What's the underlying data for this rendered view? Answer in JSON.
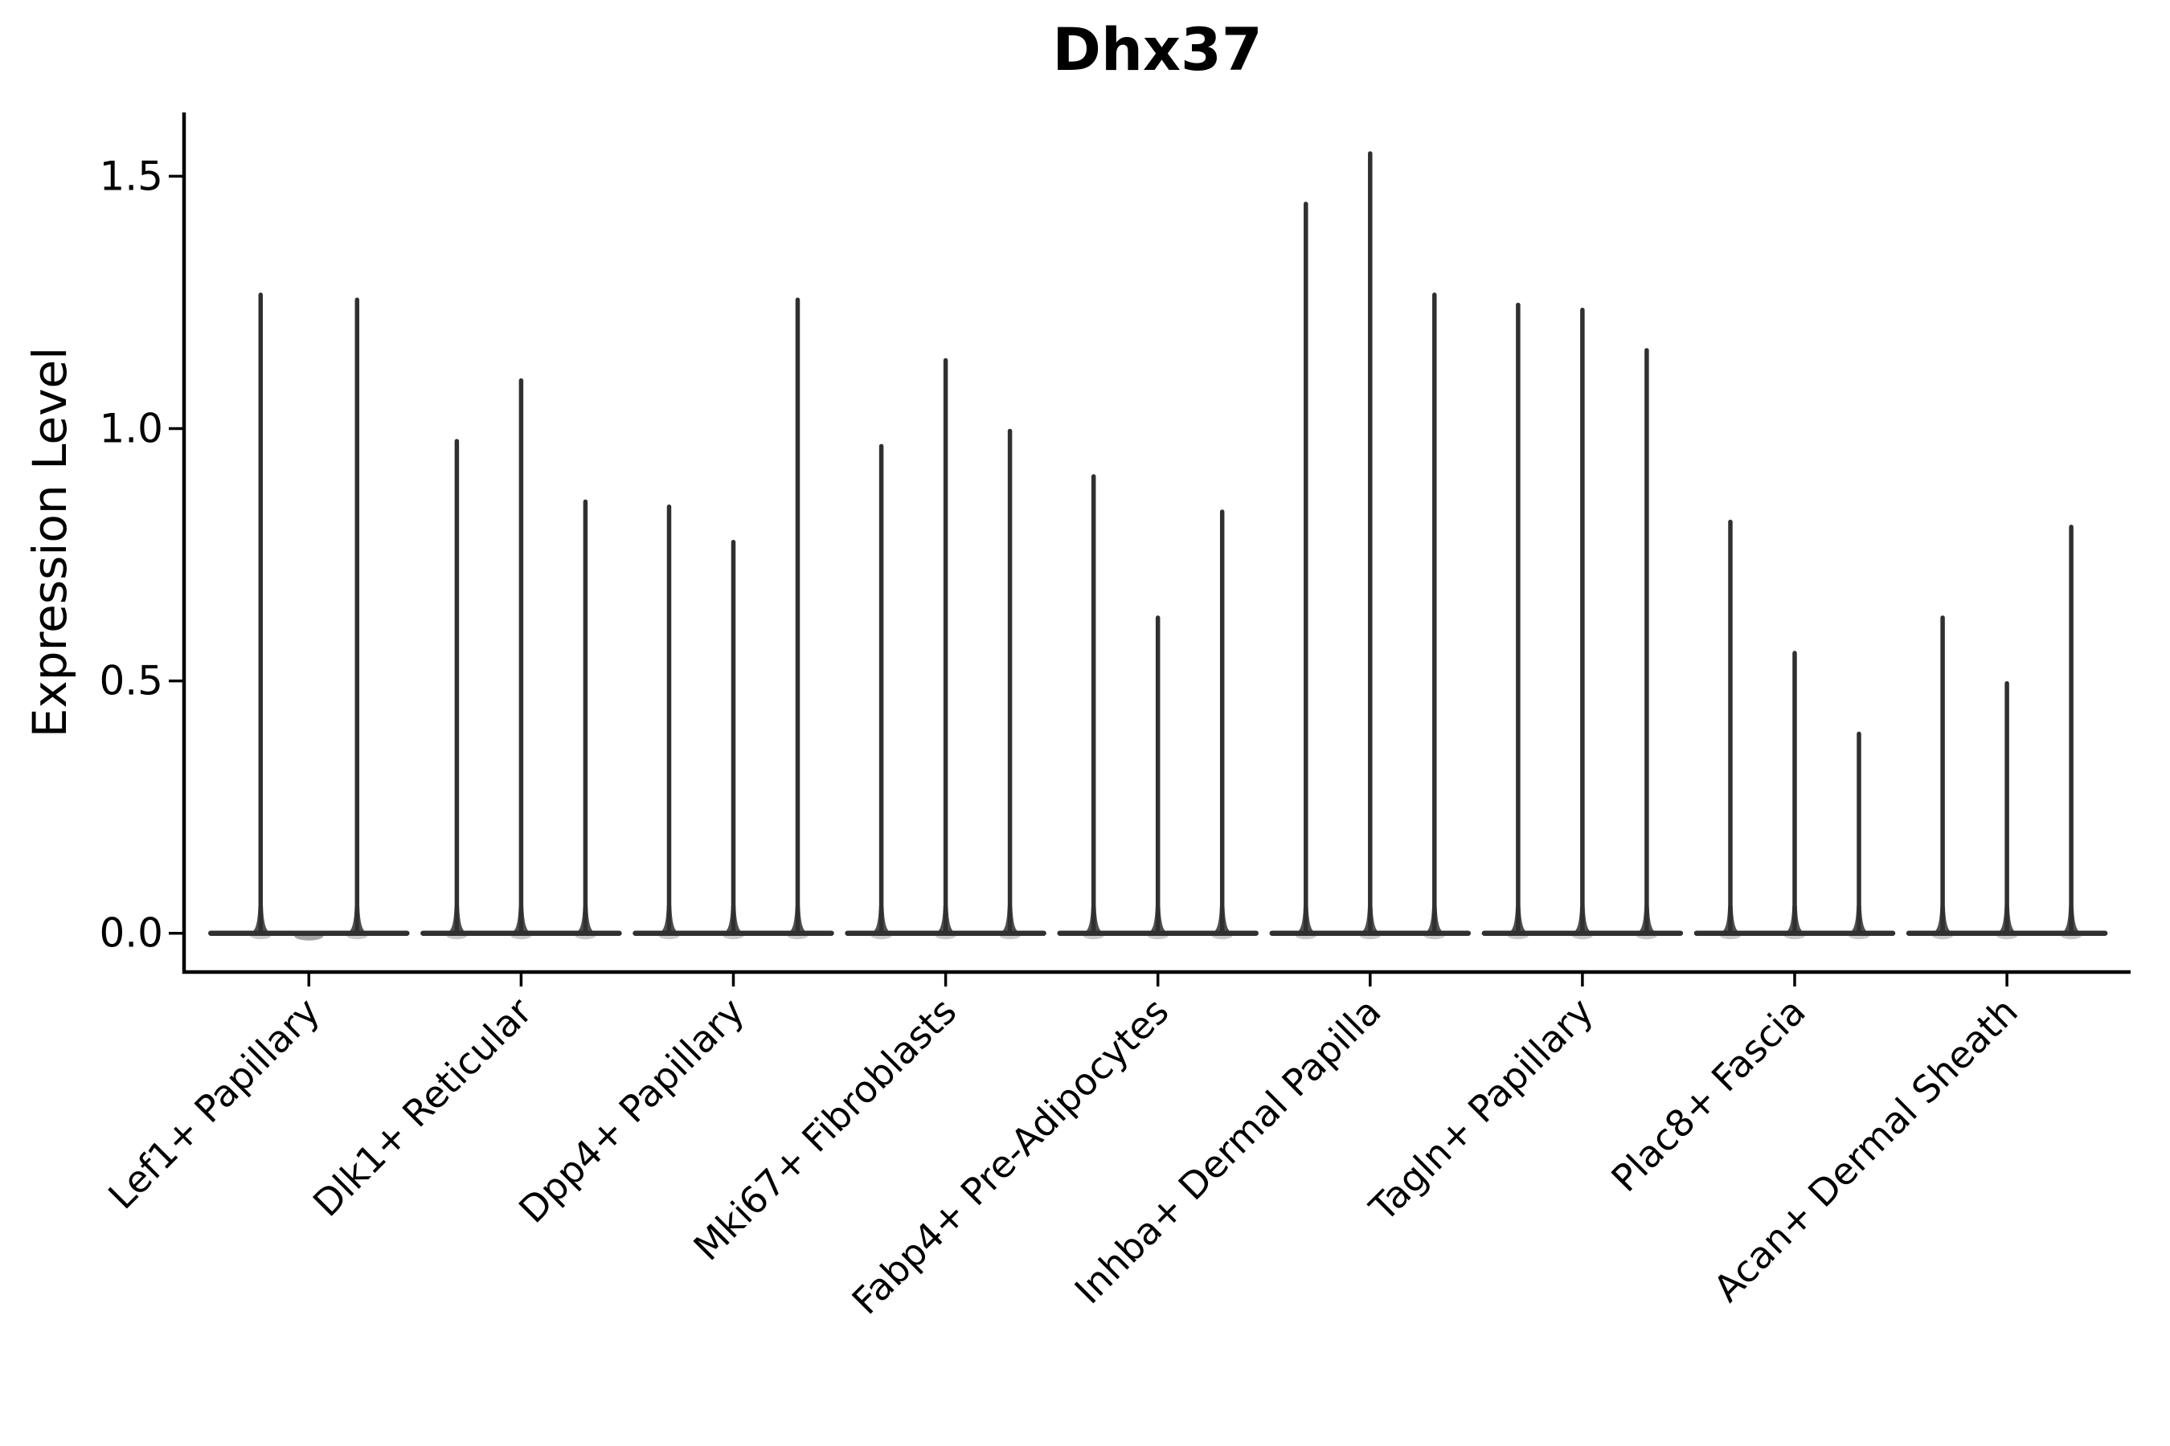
{
  "chart_data": {
    "type": "violin",
    "title": "Dhx37",
    "ylabel": "Expression Level",
    "xlabel": "",
    "ylim": [
      -0.08,
      1.63
    ],
    "grid": false,
    "legend_position": "none",
    "yticks": [
      {
        "value": 0.0,
        "label": "0.0"
      },
      {
        "value": 0.5,
        "label": "0.5"
      },
      {
        "value": 1.0,
        "label": "1.0"
      },
      {
        "value": 1.5,
        "label": "1.5"
      }
    ],
    "categories": [
      "Lef1+ Papillary",
      "Dlk1+ Reticular",
      "Dpp4+ Papillary",
      "Mki67+ Fibroblasts",
      "Fabp4+ Pre-Adipocytes",
      "Inhba+ Dermal Papilla",
      "Tagln+ Papillary",
      "Plac8+ Fascia",
      "Acan+ Dermal Sheath"
    ],
    "groups": [
      {
        "label": "Lef1+ Papillary",
        "violins": [
          {
            "offset": -60,
            "peak": 1.27
          },
          {
            "offset": 0,
            "peak": 0.0
          },
          {
            "offset": 60,
            "peak": 1.26
          }
        ]
      },
      {
        "label": "Dlk1+ Reticular",
        "violins": [
          {
            "offset": -80,
            "peak": 0.98
          },
          {
            "offset": 0,
            "peak": 1.1
          },
          {
            "offset": 80,
            "peak": 0.86
          }
        ]
      },
      {
        "label": "Dpp4+ Papillary",
        "violins": [
          {
            "offset": -80,
            "peak": 0.85
          },
          {
            "offset": 0,
            "peak": 0.78
          },
          {
            "offset": 80,
            "peak": 1.26
          }
        ]
      },
      {
        "label": "Mki67+ Fibroblasts",
        "violins": [
          {
            "offset": -80,
            "peak": 0.97
          },
          {
            "offset": 0,
            "peak": 1.14
          },
          {
            "offset": 80,
            "peak": 1.0
          }
        ]
      },
      {
        "label": "Fabp4+ Pre-Adipocytes",
        "violins": [
          {
            "offset": -80,
            "peak": 0.91
          },
          {
            "offset": 0,
            "peak": 0.63
          },
          {
            "offset": 80,
            "peak": 0.84
          }
        ]
      },
      {
        "label": "Inhba+ Dermal Papilla",
        "violins": [
          {
            "offset": -80,
            "peak": 1.45
          },
          {
            "offset": 0,
            "peak": 1.55
          },
          {
            "offset": 80,
            "peak": 1.27
          }
        ]
      },
      {
        "label": "Tagln+ Papillary",
        "violins": [
          {
            "offset": -80,
            "peak": 1.25
          },
          {
            "offset": 0,
            "peak": 1.24
          },
          {
            "offset": 80,
            "peak": 1.16
          }
        ]
      },
      {
        "label": "Plac8+ Fascia",
        "violins": [
          {
            "offset": -80,
            "peak": 0.82
          },
          {
            "offset": 0,
            "peak": 0.56
          },
          {
            "offset": 80,
            "peak": 0.4
          }
        ]
      },
      {
        "label": "Acan+ Dermal Sheath",
        "violins": [
          {
            "offset": -80,
            "peak": 0.63
          },
          {
            "offset": 0,
            "peak": 0.5
          },
          {
            "offset": 80,
            "peak": 0.81
          }
        ]
      }
    ]
  },
  "colors": {
    "violin": "#303030",
    "axis": "#000000",
    "text": "#000000",
    "background": "#ffffff"
  }
}
